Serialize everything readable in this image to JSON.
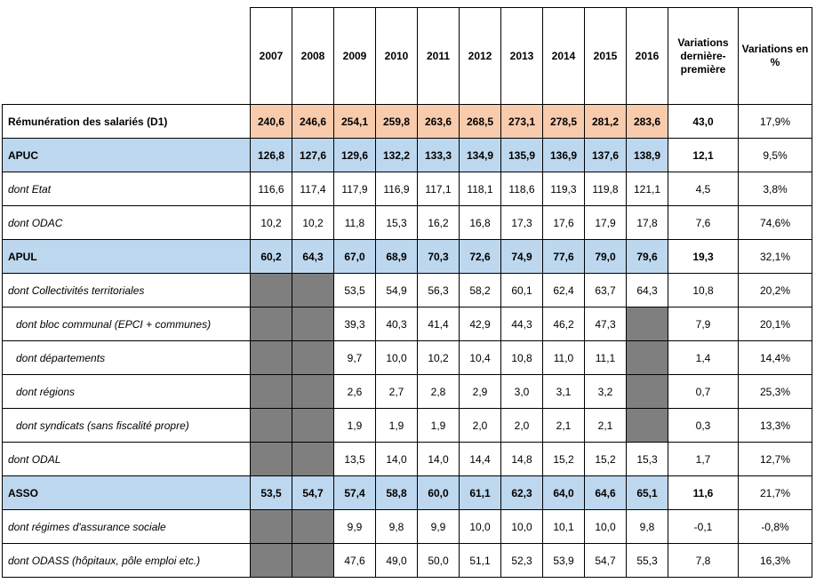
{
  "columns": {
    "years": [
      "2007",
      "2008",
      "2009",
      "2010",
      "2011",
      "2012",
      "2013",
      "2014",
      "2015",
      "2016"
    ],
    "variation_abs": "Variations dernière-première",
    "variation_pct": "Variations en %"
  },
  "rows": [
    {
      "label": "Rémunération des salariés (D1)",
      "values": [
        "240,6",
        "246,6",
        "254,1",
        "259,8",
        "263,6",
        "268,5",
        "273,1",
        "278,5",
        "281,2",
        "283,6"
      ],
      "var": "43,0",
      "pct": "17,9%"
    },
    {
      "label": "APUC",
      "values": [
        "126,8",
        "127,6",
        "129,6",
        "132,2",
        "133,3",
        "134,9",
        "135,9",
        "136,9",
        "137,6",
        "138,9"
      ],
      "var": "12,1",
      "pct": "9,5%"
    },
    {
      "label": "dont Etat",
      "values": [
        "116,6",
        "117,4",
        "117,9",
        "116,9",
        "117,1",
        "118,1",
        "118,6",
        "119,3",
        "119,8",
        "121,1"
      ],
      "var": "4,5",
      "pct": "3,8%"
    },
    {
      "label": "dont ODAC",
      "values": [
        "10,2",
        "10,2",
        "11,8",
        "15,3",
        "16,2",
        "16,8",
        "17,3",
        "17,6",
        "17,9",
        "17,8"
      ],
      "var": "7,6",
      "pct": "74,6%"
    },
    {
      "label": "APUL",
      "values": [
        "60,2",
        "64,3",
        "67,0",
        "68,9",
        "70,3",
        "72,6",
        "74,9",
        "77,6",
        "79,0",
        "79,6"
      ],
      "var": "19,3",
      "pct": "32,1%"
    },
    {
      "label": "dont Collectivités territoriales",
      "values": [
        null,
        null,
        "53,5",
        "54,9",
        "56,3",
        "58,2",
        "60,1",
        "62,4",
        "63,7",
        "64,3"
      ],
      "var": "10,8",
      "pct": "20,2%"
    },
    {
      "label": "dont bloc communal (EPCI + communes)",
      "values": [
        null,
        null,
        "39,3",
        "40,3",
        "41,4",
        "42,9",
        "44,3",
        "46,2",
        "47,3",
        null
      ],
      "var": "7,9",
      "pct": "20,1%"
    },
    {
      "label": "dont départements",
      "values": [
        null,
        null,
        "9,7",
        "10,0",
        "10,2",
        "10,4",
        "10,8",
        "11,0",
        "11,1",
        null
      ],
      "var": "1,4",
      "pct": "14,4%"
    },
    {
      "label": "dont régions",
      "values": [
        null,
        null,
        "2,6",
        "2,7",
        "2,8",
        "2,9",
        "3,0",
        "3,1",
        "3,2",
        null
      ],
      "var": "0,7",
      "pct": "25,3%"
    },
    {
      "label": "dont syndicats (sans fiscalité propre)",
      "values": [
        null,
        null,
        "1,9",
        "1,9",
        "1,9",
        "2,0",
        "2,0",
        "2,1",
        "2,1",
        null
      ],
      "var": "0,3",
      "pct": "13,3%"
    },
    {
      "label": "dont ODAL",
      "values": [
        null,
        null,
        "13,5",
        "14,0",
        "14,0",
        "14,4",
        "14,8",
        "15,2",
        "15,2",
        "15,3"
      ],
      "var": "1,7",
      "pct": "12,7%"
    },
    {
      "label": "ASSO",
      "values": [
        "53,5",
        "54,7",
        "57,4",
        "58,8",
        "60,0",
        "61,1",
        "62,3",
        "64,0",
        "64,6",
        "65,1"
      ],
      "var": "11,6",
      "pct": "21,7%"
    },
    {
      "label": "dont régimes d'assurance sociale",
      "values": [
        null,
        null,
        "9,9",
        "9,8",
        "9,9",
        "10,0",
        "10,0",
        "10,1",
        "10,0",
        "9,8"
      ],
      "var": "-0,1",
      "pct": "-0,8%"
    },
    {
      "label": "dont ODASS (hôpitaux, pôle emploi etc.)",
      "values": [
        null,
        null,
        "47,6",
        "49,0",
        "50,0",
        "51,1",
        "52,3",
        "53,9",
        "54,7",
        "55,3"
      ],
      "var": "7,8",
      "pct": "16,3%"
    }
  ]
}
